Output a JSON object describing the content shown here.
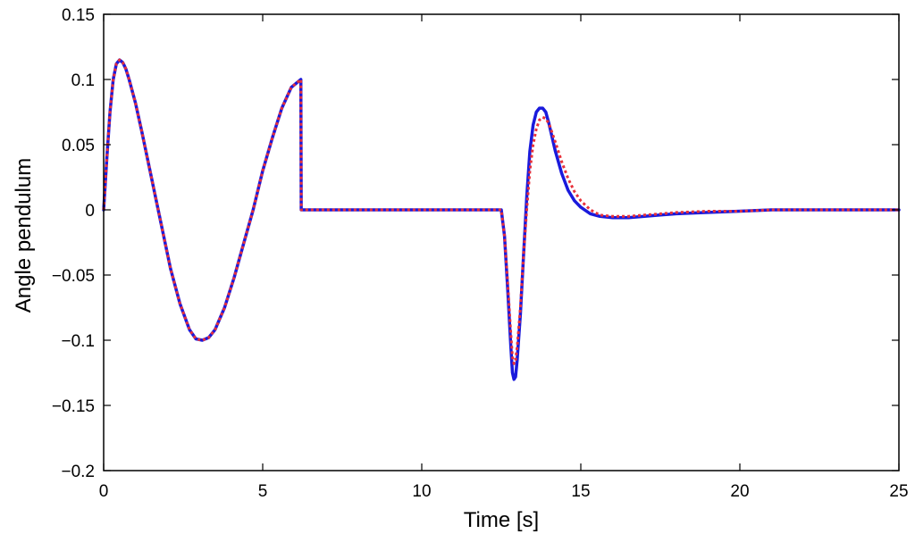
{
  "chart_data": {
    "type": "line",
    "title": "",
    "xlabel": "Time [s]",
    "ylabel": "Angle pendulum",
    "xlim": [
      0,
      25
    ],
    "ylim": [
      -0.2,
      0.15
    ],
    "xticks": [
      0,
      5,
      10,
      15,
      20,
      25
    ],
    "xtick_labels": [
      "0",
      "5",
      "10",
      "15",
      "20",
      "25"
    ],
    "yticks": [
      0.15,
      0.1,
      0.05,
      0,
      -0.05,
      -0.1,
      -0.15,
      -0.2
    ],
    "ytick_labels": [
      "0.15",
      "0.1",
      "0.05",
      "0",
      "−0.05",
      "−0.1",
      "−0.15",
      "−0.2"
    ],
    "grid": false,
    "legend": "none",
    "series": [
      {
        "color": "#1a1adc",
        "style": "solid",
        "x": [
          0,
          0.1,
          0.2,
          0.3,
          0.4,
          0.5,
          0.6,
          0.7,
          0.8,
          1.0,
          1.2,
          1.5,
          1.8,
          2.1,
          2.4,
          2.7,
          2.9,
          3.1,
          3.3,
          3.5,
          3.8,
          4.1,
          4.4,
          4.7,
          5.0,
          5.3,
          5.6,
          5.9,
          6.1,
          6.2,
          6.21,
          7.0,
          9.0,
          11.0,
          12.5,
          12.6,
          12.7,
          12.8,
          12.85,
          12.9,
          12.95,
          13.0,
          13.1,
          13.2,
          13.3,
          13.4,
          13.5,
          13.6,
          13.7,
          13.8,
          13.9,
          14.0,
          14.2,
          14.4,
          14.6,
          14.8,
          15.0,
          15.3,
          15.6,
          16.0,
          16.5,
          17.0,
          17.5,
          18.0,
          19.0,
          20.0,
          21.0,
          22.0,
          23.0,
          24.0,
          25.0
        ],
        "y": [
          0.0,
          0.04,
          0.075,
          0.1,
          0.112,
          0.115,
          0.113,
          0.108,
          0.1,
          0.082,
          0.06,
          0.025,
          -0.01,
          -0.045,
          -0.072,
          -0.092,
          -0.099,
          -0.1,
          -0.098,
          -0.092,
          -0.075,
          -0.052,
          -0.026,
          0.0,
          0.03,
          0.055,
          0.078,
          0.094,
          0.098,
          0.1,
          0.0,
          0.0,
          0.0,
          0.0,
          0.0,
          -0.02,
          -0.06,
          -0.105,
          -0.125,
          -0.13,
          -0.128,
          -0.115,
          -0.08,
          -0.035,
          0.01,
          0.045,
          0.065,
          0.075,
          0.078,
          0.078,
          0.075,
          0.066,
          0.045,
          0.028,
          0.015,
          0.007,
          0.002,
          -0.003,
          -0.005,
          -0.006,
          -0.006,
          -0.005,
          -0.004,
          -0.003,
          -0.002,
          -0.001,
          0.0,
          0.0,
          0.0,
          0.0,
          0.0
        ]
      },
      {
        "color": "#e8303a",
        "style": "dotted",
        "x": [
          0,
          0.1,
          0.2,
          0.3,
          0.4,
          0.5,
          0.6,
          0.7,
          0.8,
          1.0,
          1.2,
          1.5,
          1.8,
          2.1,
          2.4,
          2.7,
          2.9,
          3.1,
          3.3,
          3.5,
          3.8,
          4.1,
          4.4,
          4.7,
          5.0,
          5.3,
          5.6,
          5.9,
          6.1,
          6.2,
          6.21,
          7.0,
          9.0,
          11.0,
          12.5,
          12.6,
          12.7,
          12.8,
          12.85,
          12.9,
          12.95,
          13.0,
          13.1,
          13.2,
          13.3,
          13.4,
          13.5,
          13.6,
          13.7,
          13.8,
          13.9,
          14.0,
          14.2,
          14.4,
          14.6,
          14.8,
          15.0,
          15.3,
          15.6,
          16.0,
          16.5,
          17.0,
          17.5,
          18.0,
          19.0,
          20.0,
          21.0,
          22.0,
          23.0,
          24.0,
          25.0
        ],
        "y": [
          0.0,
          0.04,
          0.075,
          0.1,
          0.112,
          0.115,
          0.113,
          0.108,
          0.1,
          0.082,
          0.06,
          0.025,
          -0.01,
          -0.045,
          -0.072,
          -0.092,
          -0.099,
          -0.1,
          -0.098,
          -0.092,
          -0.075,
          -0.052,
          -0.026,
          0.0,
          0.03,
          0.055,
          0.078,
          0.094,
          0.098,
          0.1,
          0.0,
          0.0,
          0.0,
          0.0,
          0.0,
          -0.02,
          -0.055,
          -0.095,
          -0.113,
          -0.118,
          -0.115,
          -0.105,
          -0.075,
          -0.035,
          0.0,
          0.03,
          0.05,
          0.062,
          0.069,
          0.071,
          0.07,
          0.066,
          0.052,
          0.037,
          0.024,
          0.014,
          0.007,
          0.0,
          -0.004,
          -0.005,
          -0.005,
          -0.004,
          -0.003,
          -0.002,
          -0.001,
          -0.001,
          0.0,
          0.0,
          0.0,
          0.0,
          0.0
        ]
      }
    ]
  }
}
